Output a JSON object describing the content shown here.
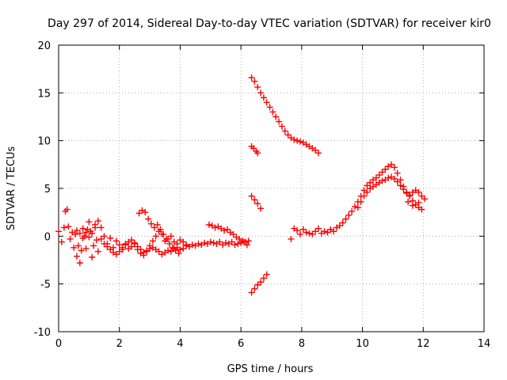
{
  "chart_data": {
    "type": "scatter",
    "title": "Day 297 of 2014, Sidereal Day-to-day VTEC variation (SDTVAR) for receiver kir0",
    "xlabel": "GPS time / hours",
    "ylabel": "SDTVAR / TECUs",
    "xlim": [
      0,
      14
    ],
    "ylim": [
      -10,
      20
    ],
    "xticks": [
      "0",
      "2",
      "4",
      "6",
      "8",
      "10",
      "12",
      "14"
    ],
    "yticks": [
      "-10",
      "-5",
      "0",
      "5",
      "10",
      "15",
      "20"
    ],
    "grid": true,
    "marker": "plus",
    "color": "#ff0000",
    "series": [
      {
        "name": "main-low-trace",
        "points": [
          [
            0.0,
            0.5
          ],
          [
            0.1,
            -0.6
          ],
          [
            0.18,
            0.9
          ],
          [
            0.22,
            2.6
          ],
          [
            0.28,
            2.8
          ],
          [
            0.32,
            1.0
          ],
          [
            0.38,
            -0.3
          ],
          [
            0.45,
            0.4
          ],
          [
            0.5,
            -1.2
          ],
          [
            0.55,
            0.2
          ],
          [
            0.6,
            -2.1
          ],
          [
            0.65,
            -1.0
          ],
          [
            0.7,
            -2.8
          ],
          [
            0.75,
            -1.5
          ],
          [
            0.8,
            0.8
          ],
          [
            0.85,
            0.0
          ],
          [
            0.9,
            -1.3
          ],
          [
            0.95,
            0.7
          ],
          [
            1.0,
            1.5
          ],
          [
            1.05,
            0.5
          ],
          [
            1.1,
            -2.2
          ],
          [
            1.15,
            -1.0
          ],
          [
            1.2,
            1.2
          ],
          [
            1.25,
            -0.4
          ],
          [
            1.3,
            -1.6
          ],
          [
            1.4,
            0.9
          ],
          [
            1.5,
            0.0
          ],
          [
            1.6,
            -0.8
          ],
          [
            1.7,
            -0.2
          ],
          [
            1.8,
            -1.2
          ],
          [
            1.9,
            -0.5
          ],
          [
            2.0,
            -0.9
          ],
          [
            2.1,
            -1.4
          ],
          [
            2.2,
            -0.8
          ],
          [
            2.3,
            -1.3
          ],
          [
            2.4,
            -1.1
          ],
          [
            2.5,
            -0.7
          ],
          [
            2.6,
            -1.4
          ],
          [
            2.7,
            -1.8
          ],
          [
            2.8,
            -2.0
          ],
          [
            2.9,
            -1.5
          ],
          [
            3.0,
            -1.0
          ],
          [
            3.1,
            -1.2
          ],
          [
            3.2,
            -1.4
          ],
          [
            3.3,
            -1.6
          ],
          [
            3.4,
            -1.9
          ],
          [
            3.5,
            -1.7
          ],
          [
            3.6,
            -1.5
          ],
          [
            3.7,
            -1.6
          ],
          [
            3.8,
            -1.3
          ],
          [
            3.9,
            -1.2
          ],
          [
            4.0,
            -1.4
          ],
          [
            4.1,
            -1.3
          ],
          [
            4.2,
            -1.0
          ],
          [
            4.3,
            -1.1
          ],
          [
            4.4,
            -0.9
          ],
          [
            4.5,
            -1.0
          ],
          [
            4.6,
            -0.8
          ],
          [
            4.7,
            -0.9
          ],
          [
            4.8,
            -0.7
          ],
          [
            4.9,
            -0.8
          ],
          [
            5.0,
            -0.6
          ],
          [
            5.1,
            -0.7
          ],
          [
            5.2,
            -0.8
          ],
          [
            5.3,
            -0.6
          ],
          [
            5.4,
            -0.9
          ],
          [
            5.5,
            -0.7
          ],
          [
            5.6,
            -0.8
          ],
          [
            5.7,
            -0.6
          ],
          [
            5.8,
            -0.9
          ],
          [
            5.9,
            -0.8
          ],
          [
            6.0,
            -0.7
          ],
          [
            6.1,
            -0.6
          ],
          [
            6.2,
            -0.9
          ],
          [
            6.25,
            -0.5
          ]
        ]
      },
      {
        "name": "secondary-low-trace",
        "points": [
          [
            0.6,
            0.6
          ],
          [
            0.7,
            0.3
          ],
          [
            0.8,
            -0.2
          ],
          [
            0.9,
            0.4
          ],
          [
            1.0,
            -0.1
          ],
          [
            1.1,
            0.3
          ],
          [
            1.2,
            0.9
          ],
          [
            1.3,
            1.6
          ],
          [
            1.4,
            -0.3
          ],
          [
            1.5,
            -0.8
          ],
          [
            1.6,
            -1.1
          ],
          [
            1.7,
            -1.4
          ],
          [
            1.8,
            -1.7
          ],
          [
            1.9,
            -1.9
          ],
          [
            2.0,
            -1.6
          ],
          [
            2.1,
            -1.2
          ],
          [
            2.2,
            -0.9
          ],
          [
            2.3,
            -0.6
          ],
          [
            2.4,
            -0.4
          ],
          [
            2.5,
            -0.8
          ],
          [
            2.6,
            -1.1
          ],
          [
            2.7,
            -1.4
          ],
          [
            2.8,
            -1.7
          ],
          [
            2.9,
            -1.6
          ],
          [
            3.0,
            -1.3
          ],
          [
            3.1,
            -0.5
          ],
          [
            3.2,
            0.0
          ],
          [
            3.3,
            0.5
          ],
          [
            3.4,
            0.2
          ],
          [
            3.5,
            -0.5
          ],
          [
            3.6,
            -0.3
          ],
          [
            3.7,
            0.0
          ],
          [
            3.8,
            -0.6
          ],
          [
            3.9,
            -0.8
          ],
          [
            4.0,
            -0.4
          ],
          [
            4.1,
            -0.6
          ],
          [
            4.2,
            -0.9
          ]
        ]
      },
      {
        "name": "hump-3h-trace",
        "points": [
          [
            2.65,
            2.4
          ],
          [
            2.75,
            2.7
          ],
          [
            2.85,
            2.5
          ],
          [
            2.95,
            1.8
          ],
          [
            3.05,
            1.3
          ],
          [
            3.15,
            0.9
          ],
          [
            3.25,
            1.2
          ],
          [
            3.35,
            0.7
          ],
          [
            3.45,
            0.2
          ],
          [
            3.55,
            -0.3
          ],
          [
            3.65,
            -0.8
          ],
          [
            3.75,
            -1.2
          ],
          [
            3.85,
            -1.5
          ],
          [
            3.95,
            -1.8
          ]
        ]
      },
      {
        "name": "hump-5h-trace",
        "points": [
          [
            4.95,
            1.2
          ],
          [
            5.05,
            1.1
          ],
          [
            5.15,
            0.9
          ],
          [
            5.25,
            1.0
          ],
          [
            5.35,
            0.8
          ],
          [
            5.45,
            0.6
          ],
          [
            5.55,
            0.7
          ],
          [
            5.65,
            0.4
          ],
          [
            5.75,
            0.2
          ],
          [
            5.85,
            -0.1
          ],
          [
            5.95,
            -0.3
          ],
          [
            6.05,
            -0.5
          ],
          [
            6.15,
            -0.6
          ]
        ]
      },
      {
        "name": "high-descending-trace",
        "points": [
          [
            6.35,
            16.6
          ],
          [
            6.45,
            16.2
          ],
          [
            6.55,
            15.6
          ],
          [
            6.65,
            15.0
          ],
          [
            6.75,
            14.5
          ],
          [
            6.85,
            14.0
          ],
          [
            6.95,
            13.5
          ],
          [
            7.05,
            13.0
          ],
          [
            7.15,
            12.5
          ],
          [
            7.25,
            12.0
          ],
          [
            7.35,
            11.5
          ],
          [
            7.45,
            11.0
          ],
          [
            7.55,
            10.6
          ],
          [
            7.65,
            10.3
          ],
          [
            7.75,
            10.1
          ],
          [
            7.85,
            10.0
          ],
          [
            7.95,
            9.9
          ],
          [
            8.05,
            9.8
          ],
          [
            8.15,
            9.6
          ],
          [
            8.25,
            9.4
          ],
          [
            8.35,
            9.2
          ],
          [
            8.45,
            9.0
          ],
          [
            8.55,
            8.7
          ]
        ]
      },
      {
        "name": "short-9-trace",
        "points": [
          [
            6.35,
            9.4
          ],
          [
            6.42,
            9.2
          ],
          [
            6.5,
            8.9
          ],
          [
            6.55,
            8.7
          ]
        ]
      },
      {
        "name": "short-4-trace",
        "points": [
          [
            6.35,
            4.2
          ],
          [
            6.45,
            3.8
          ],
          [
            6.55,
            3.4
          ],
          [
            6.65,
            2.9
          ]
        ]
      },
      {
        "name": "negative-trace",
        "points": [
          [
            6.35,
            -5.9
          ],
          [
            6.45,
            -5.5
          ],
          [
            6.55,
            -5.1
          ],
          [
            6.65,
            -4.8
          ],
          [
            6.75,
            -4.4
          ],
          [
            6.85,
            -4.0
          ]
        ]
      },
      {
        "name": "afternoon-rise-trace",
        "points": [
          [
            7.65,
            -0.3
          ],
          [
            7.75,
            0.8
          ],
          [
            7.85,
            0.6
          ],
          [
            7.95,
            0.2
          ],
          [
            8.05,
            0.7
          ],
          [
            8.15,
            0.4
          ],
          [
            8.25,
            0.3
          ],
          [
            8.35,
            0.2
          ],
          [
            8.45,
            0.5
          ],
          [
            8.55,
            0.8
          ],
          [
            8.65,
            0.3
          ],
          [
            8.75,
            0.5
          ],
          [
            8.85,
            0.4
          ],
          [
            8.95,
            0.7
          ],
          [
            9.05,
            0.5
          ],
          [
            9.15,
            0.9
          ],
          [
            9.25,
            1.1
          ],
          [
            9.35,
            1.4
          ],
          [
            9.45,
            1.8
          ],
          [
            9.55,
            2.2
          ],
          [
            9.65,
            2.6
          ],
          [
            9.75,
            3.1
          ],
          [
            9.85,
            3.6
          ],
          [
            9.95,
            4.2
          ],
          [
            10.05,
            4.8
          ],
          [
            10.15,
            5.3
          ],
          [
            10.25,
            5.6
          ],
          [
            10.35,
            5.9
          ],
          [
            10.45,
            6.1
          ],
          [
            10.55,
            6.4
          ],
          [
            10.65,
            6.7
          ],
          [
            10.75,
            7.0
          ],
          [
            10.85,
            7.3
          ],
          [
            10.95,
            7.5
          ],
          [
            11.05,
            7.2
          ],
          [
            11.15,
            6.6
          ],
          [
            11.25,
            5.9
          ],
          [
            11.35,
            5.2
          ],
          [
            11.45,
            4.6
          ],
          [
            11.55,
            4.2
          ],
          [
            11.65,
            3.7
          ],
          [
            11.75,
            3.3
          ],
          [
            11.85,
            3.0
          ],
          [
            11.95,
            2.8
          ]
        ]
      },
      {
        "name": "afternoon-lower-trace",
        "points": [
          [
            9.85,
            3.0
          ],
          [
            9.95,
            3.6
          ],
          [
            10.05,
            4.2
          ],
          [
            10.15,
            4.6
          ],
          [
            10.25,
            5.0
          ],
          [
            10.35,
            5.2
          ],
          [
            10.45,
            5.4
          ],
          [
            10.55,
            5.6
          ],
          [
            10.65,
            5.8
          ],
          [
            10.75,
            5.9
          ],
          [
            10.85,
            6.1
          ],
          [
            10.95,
            6.2
          ],
          [
            11.05,
            6.0
          ],
          [
            11.15,
            5.7
          ],
          [
            11.25,
            5.3
          ],
          [
            11.35,
            4.9
          ],
          [
            11.45,
            4.5
          ],
          [
            11.55,
            4.3
          ],
          [
            11.65,
            4.6
          ],
          [
            11.75,
            4.8
          ],
          [
            11.85,
            4.6
          ],
          [
            11.95,
            4.2
          ],
          [
            12.05,
            3.9
          ],
          [
            11.85,
            3.5
          ],
          [
            11.65,
            3.2
          ],
          [
            11.5,
            3.6
          ]
        ]
      }
    ]
  }
}
